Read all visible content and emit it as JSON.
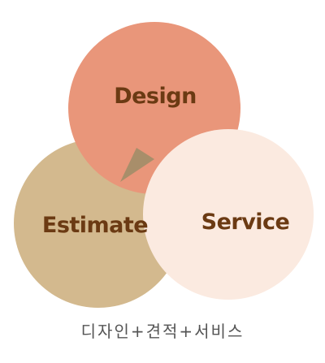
{
  "labels": {
    "design": "Design",
    "estimate": "Estimate",
    "service": "Service"
  },
  "caption": "디자인+견적+서비스",
  "colors": {
    "design_fill": "#E9967A",
    "estimate_fill": "#D3B98E",
    "service_fill": "#FBEAE0",
    "overlap_shadow": "#A88E6A",
    "label_text": "#6B3A13",
    "caption_text": "#555555"
  }
}
